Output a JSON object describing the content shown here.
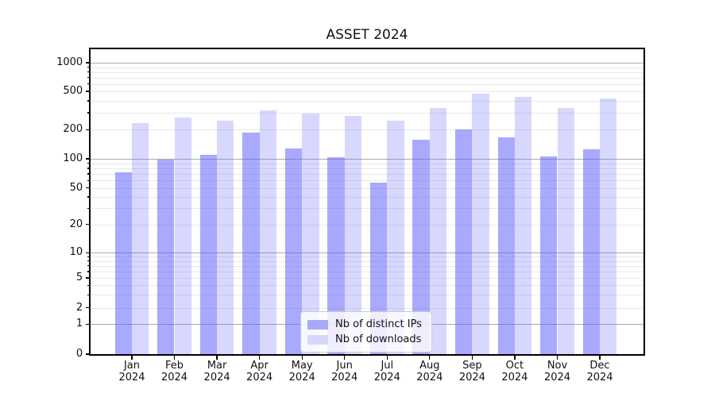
{
  "chart_data": {
    "type": "bar",
    "title": "ASSET 2024",
    "x_months": [
      "Jan",
      "Feb",
      "Mar",
      "Apr",
      "May",
      "Jun",
      "Jul",
      "Aug",
      "Sep",
      "Oct",
      "Nov",
      "Dec"
    ],
    "x_year": "2024",
    "categories": [
      "Jan 2024",
      "Feb 2024",
      "Mar 2024",
      "Apr 2024",
      "May 2024",
      "Jun 2024",
      "Jul 2024",
      "Aug 2024",
      "Sep 2024",
      "Oct 2024",
      "Nov 2024",
      "Dec 2024"
    ],
    "series": [
      {
        "name": "Nb of distinct IPs",
        "color": "rgba(90,90,252,0.52)",
        "legend_color": "#a9a9f8",
        "values": [
          72,
          98,
          111,
          187,
          127,
          104,
          57,
          157,
          203,
          166,
          106,
          125
        ]
      },
      {
        "name": "Nb of downloads",
        "color": "rgba(90,90,252,0.24)",
        "legend_color": "#d7d7fb",
        "values": [
          234,
          268,
          250,
          317,
          295,
          278,
          246,
          338,
          470,
          440,
          335,
          420
        ]
      }
    ],
    "yscale": "symlog",
    "ylim": [
      0,
      1400
    ],
    "y_ticks_labeled": [
      0,
      1,
      2,
      5,
      10,
      20,
      50,
      100,
      200,
      500,
      1000
    ],
    "y_minor_ticks": [
      3,
      4,
      6,
      7,
      8,
      9,
      30,
      40,
      60,
      70,
      80,
      90,
      300,
      400,
      600,
      700,
      800,
      900
    ],
    "y_grid_major": [
      1,
      10,
      100,
      1000
    ],
    "legend_position": "lower center",
    "colors": {
      "major_grid": "#ababab",
      "minor_grid": "#e9e9e9",
      "spine": "#000000"
    }
  }
}
